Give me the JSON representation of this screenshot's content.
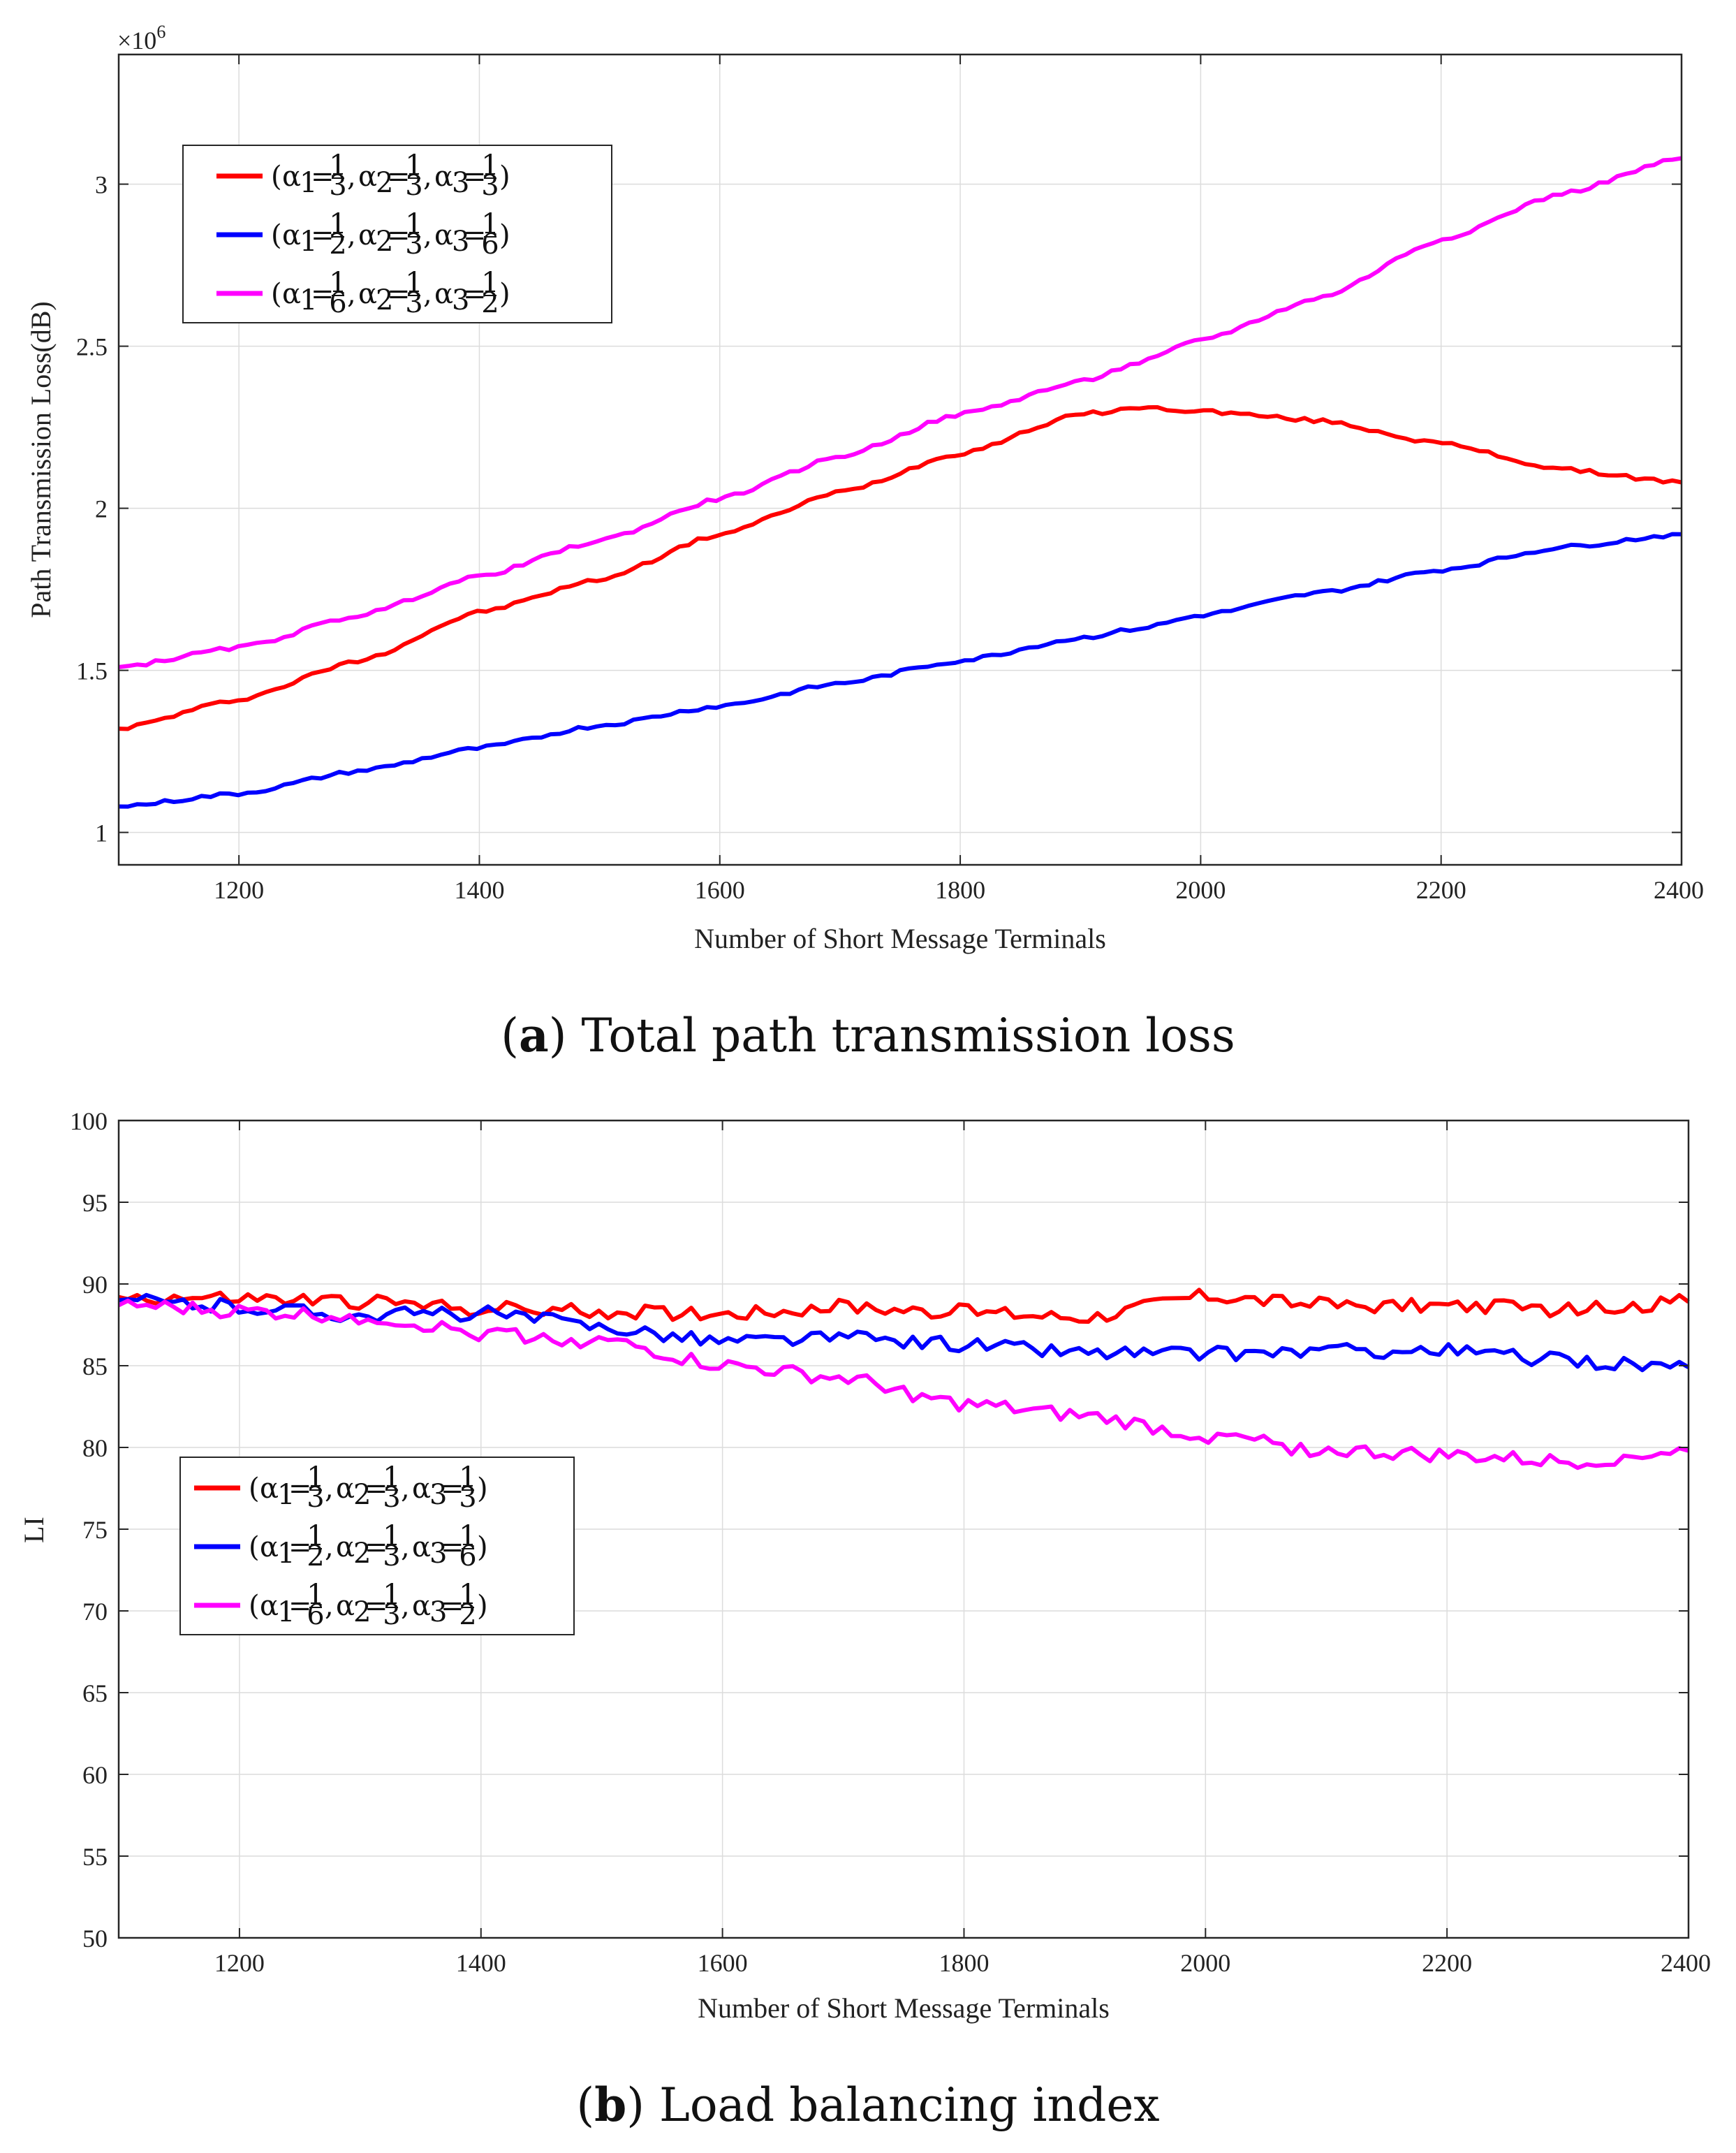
{
  "colors": {
    "red": "#ff0000",
    "blue": "#0000ff",
    "magenta": "#ff00ff",
    "grid": "#dcdcdc",
    "axis": "#262626"
  },
  "captions": {
    "a": {
      "letter": "a",
      "text": "Total path transmission loss"
    },
    "b": {
      "letter": "b",
      "text": "Load balancing index"
    }
  },
  "legend_entries": [
    {
      "name": "(α1=1/3, α2=1/3, α3=1/3)",
      "color": "red",
      "parts": {
        "a1": "α",
        "s1": "1",
        "eq": "=",
        "n1": "1",
        "d1": "3",
        "a2": "α",
        "s2": "2",
        "n2": "1",
        "d2": "3",
        "a3": "α",
        "s3": "3",
        "n3": "1",
        "d3": "3"
      }
    },
    {
      "name": "(α1=1/2, α2=1/3, α3=1/6)",
      "color": "blue",
      "parts": {
        "a1": "α",
        "s1": "1",
        "eq": "=",
        "n1": "1",
        "d1": "2",
        "a2": "α",
        "s2": "2",
        "n2": "1",
        "d2": "3",
        "a3": "α",
        "s3": "3",
        "n3": "1",
        "d3": "6"
      }
    },
    {
      "name": "(α1=1/6, α2=1/3, α3=1/2)",
      "color": "magenta",
      "parts": {
        "a1": "α",
        "s1": "1",
        "eq": "=",
        "n1": "1",
        "d1": "6",
        "a2": "α",
        "s2": "2",
        "n2": "1",
        "d2": "3",
        "a3": "α",
        "s3": "3",
        "n3": "1",
        "d3": "2"
      }
    }
  ],
  "chart_data": [
    {
      "id": "a",
      "type": "line",
      "title": "",
      "xlabel": "Number of Short Message Terminals",
      "ylabel": "Path Transmission Loss(dB)",
      "y_exponent_label": "×10",
      "y_exponent": "6",
      "xlim": [
        1100,
        2400
      ],
      "ylim": [
        0.9,
        3.4
      ],
      "xticks": [
        1200,
        1400,
        1600,
        1800,
        2000,
        2200,
        2400
      ],
      "xtick_labels": [
        "1200",
        "1400",
        "1600",
        "1800",
        "2000",
        "2200",
        "2400"
      ],
      "yticks": [
        1,
        1.5,
        2,
        2.5,
        3
      ],
      "ytick_labels": [
        "1",
        "1.5",
        "2",
        "2.5",
        "3"
      ],
      "grid": true,
      "legend_position": "top-left",
      "x": [
        1100,
        1200,
        1300,
        1400,
        1500,
        1600,
        1700,
        1800,
        1900,
        1950,
        2000,
        2100,
        2200,
        2300,
        2400
      ],
      "series": [
        {
          "name": "(α1=1/3, α2=1/3, α3=1/3)",
          "color": "red",
          "values": [
            1.32,
            1.41,
            1.53,
            1.68,
            1.78,
            1.92,
            2.05,
            2.17,
            2.29,
            2.31,
            2.3,
            2.27,
            2.2,
            2.12,
            2.08
          ]
        },
        {
          "name": "(α1=1/2, α2=1/3, α3=1/6)",
          "color": "blue",
          "values": [
            1.08,
            1.12,
            1.19,
            1.26,
            1.33,
            1.39,
            1.46,
            1.53,
            1.6,
            1.63,
            1.67,
            1.74,
            1.81,
            1.88,
            1.92
          ]
        },
        {
          "name": "(α1=1/6, α2=1/3, α3=1/2)",
          "color": "magenta",
          "values": [
            1.51,
            1.57,
            1.67,
            1.79,
            1.9,
            2.03,
            2.16,
            2.29,
            2.39,
            2.45,
            2.52,
            2.65,
            2.83,
            2.97,
            3.08
          ]
        }
      ]
    },
    {
      "id": "b",
      "type": "line",
      "title": "",
      "xlabel": "Number of Short Message Terminals",
      "ylabel": "LI",
      "xlim": [
        1100,
        2400
      ],
      "ylim": [
        50,
        100
      ],
      "xticks": [
        1200,
        1400,
        1600,
        1800,
        2000,
        2200,
        2400
      ],
      "xtick_labels": [
        "1200",
        "1400",
        "1600",
        "1800",
        "2000",
        "2200",
        "2400"
      ],
      "yticks": [
        50,
        55,
        60,
        65,
        70,
        75,
        80,
        85,
        90,
        95,
        100
      ],
      "ytick_labels": [
        "50",
        "55",
        "60",
        "65",
        "70",
        "75",
        "80",
        "85",
        "90",
        "95",
        "100"
      ],
      "grid": true,
      "legend_position": "center-left",
      "x": [
        1100,
        1200,
        1300,
        1400,
        1500,
        1600,
        1700,
        1800,
        1900,
        2000,
        2100,
        2200,
        2300,
        2400
      ],
      "series": [
        {
          "name": "(α1=1/3, α2=1/3, α3=1/3)",
          "color": "red",
          "values": [
            89.2,
            89.1,
            88.9,
            88.5,
            88.3,
            88.2,
            88.6,
            88.3,
            88.0,
            89.3,
            88.7,
            88.7,
            88.4,
            88.9
          ]
        },
        {
          "name": "(α1=1/2, α2=1/3, α3=1/6)",
          "color": "blue",
          "values": [
            89.0,
            88.6,
            88.1,
            88.2,
            87.4,
            86.5,
            86.7,
            86.3,
            85.8,
            85.7,
            85.9,
            85.9,
            85.3,
            84.9
          ]
        },
        {
          "name": "(α1=1/6, α2=1/3, α3=1/2)",
          "color": "magenta",
          "values": [
            88.7,
            88.3,
            88.0,
            87.0,
            86.5,
            85.0,
            84.2,
            82.6,
            81.9,
            80.7,
            79.8,
            79.5,
            79.1,
            79.8
          ]
        }
      ]
    }
  ]
}
